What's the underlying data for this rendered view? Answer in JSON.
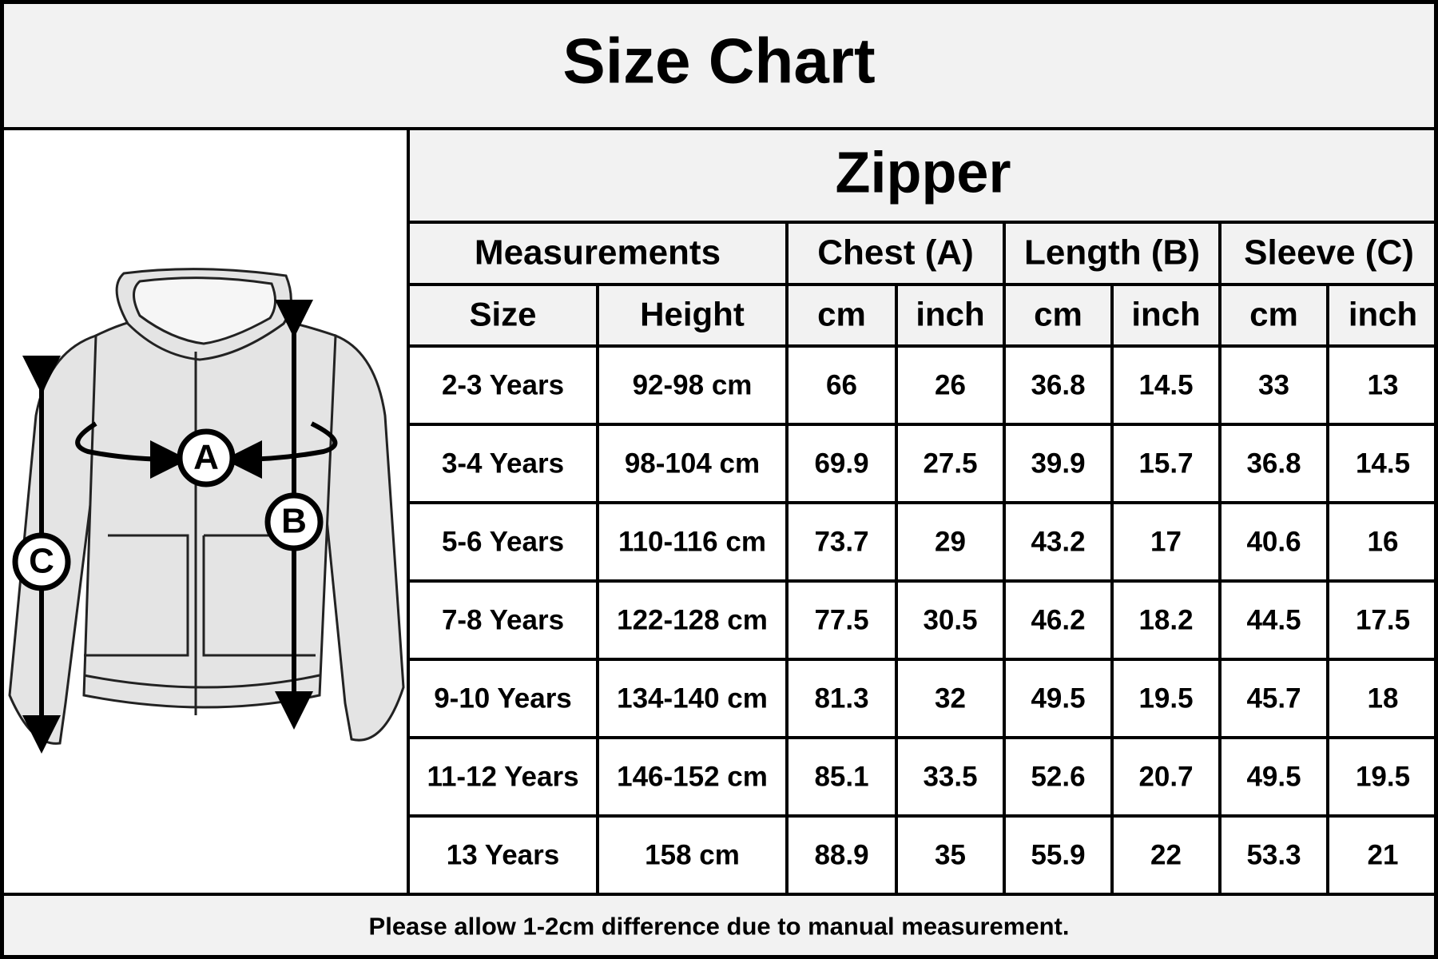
{
  "title": "Size Chart",
  "diagram": {
    "labels": [
      "A",
      "B",
      "C"
    ]
  },
  "table": {
    "title": "Zipper",
    "group_headers": [
      "Measurements",
      "Chest (A)",
      "Length (B)",
      "Sleeve (C)"
    ],
    "column_headers": [
      "Size",
      "Height",
      "cm",
      "inch",
      "cm",
      "inch",
      "cm",
      "inch"
    ],
    "rows": [
      [
        "2-3 Years",
        "92-98 cm",
        "66",
        "26",
        "36.8",
        "14.5",
        "33",
        "13"
      ],
      [
        "3-4 Years",
        "98-104 cm",
        "69.9",
        "27.5",
        "39.9",
        "15.7",
        "36.8",
        "14.5"
      ],
      [
        "5-6 Years",
        "110-116 cm",
        "73.7",
        "29",
        "43.2",
        "17",
        "40.6",
        "16"
      ],
      [
        "7-8 Years",
        "122-128 cm",
        "77.5",
        "30.5",
        "46.2",
        "18.2",
        "44.5",
        "17.5"
      ],
      [
        "9-10 Years",
        "134-140 cm",
        "81.3",
        "32",
        "49.5",
        "19.5",
        "45.7",
        "18"
      ],
      [
        "11-12 Years",
        "146-152 cm",
        "85.1",
        "33.5",
        "52.6",
        "20.7",
        "49.5",
        "19.5"
      ],
      [
        "13 Years",
        "158 cm",
        "88.9",
        "35",
        "55.9",
        "22",
        "53.3",
        "21"
      ]
    ]
  },
  "footer": "Please allow 1-2cm difference due to manual measurement."
}
